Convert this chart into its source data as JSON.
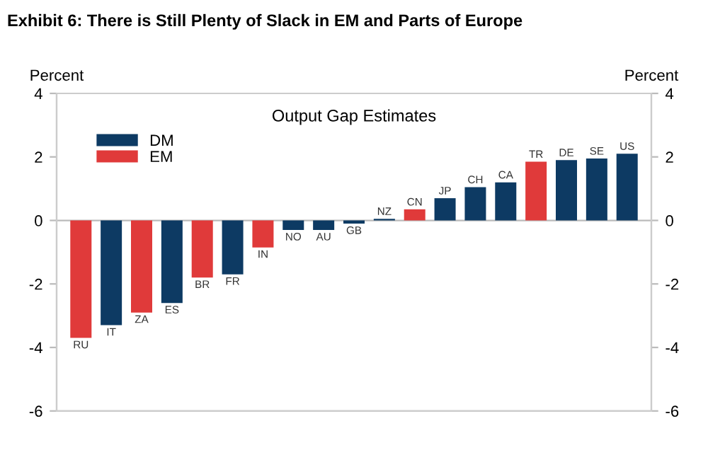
{
  "chart_data": {
    "type": "bar",
    "title": "Exhibit 6: There is Still Plenty of Slack in EM and Parts of Europe",
    "subtitle": "Output Gap Estimates",
    "ylabel": "Percent",
    "y2label": "Percent",
    "categories": [
      "RU",
      "IT",
      "ZA",
      "ES",
      "BR",
      "FR",
      "IN",
      "NO",
      "AU",
      "GB",
      "NZ",
      "CN",
      "JP",
      "CH",
      "CA",
      "TR",
      "DE",
      "SE",
      "US"
    ],
    "series": [
      {
        "name": "DM",
        "color": "#0d3a63",
        "values": [
          null,
          -3.3,
          null,
          -2.6,
          null,
          -1.7,
          null,
          -0.3,
          -0.3,
          -0.1,
          0.05,
          null,
          0.7,
          1.05,
          1.2,
          null,
          1.9,
          1.95,
          2.1
        ]
      },
      {
        "name": "EM",
        "color": "#e03a3a",
        "values": [
          -3.7,
          null,
          -2.9,
          null,
          -1.8,
          null,
          -0.85,
          null,
          null,
          null,
          null,
          0.35,
          null,
          null,
          null,
          1.85,
          null,
          null,
          null
        ]
      }
    ],
    "ylim": [
      -6,
      4
    ],
    "yticks": [
      -6,
      -4,
      -2,
      0,
      2,
      4
    ],
    "y2lim": [
      -6,
      4
    ],
    "y2ticks": [
      -6,
      -4,
      -2,
      0,
      2,
      4
    ],
    "grid": false,
    "legend": "top left"
  }
}
